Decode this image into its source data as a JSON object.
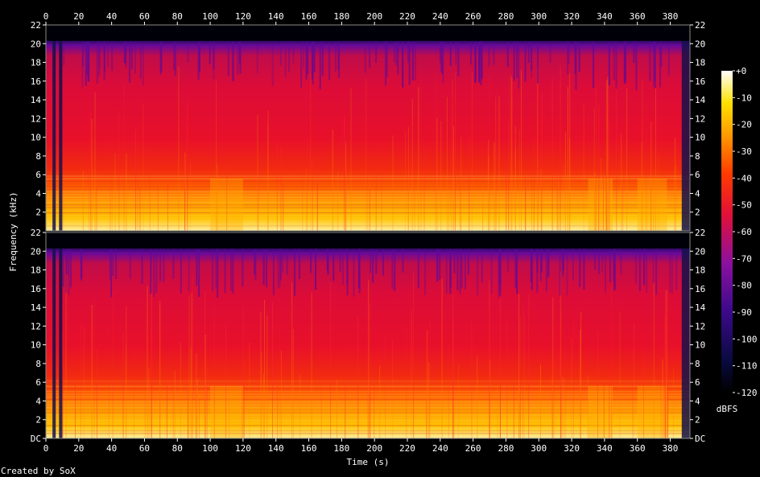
{
  "chart_data": {
    "type": "heatmap",
    "xlabel": "Time (s)",
    "ylabel": "Frequency (kHz)",
    "credit": "Created by SoX",
    "x_ticks": [
      "0",
      "20",
      "40",
      "60",
      "80",
      "100",
      "120",
      "140",
      "160",
      "180",
      "200",
      "220",
      "240",
      "260",
      "280",
      "300",
      "320",
      "340",
      "360",
      "380"
    ],
    "xlim": [
      0,
      392
    ],
    "channels": [
      {
        "y_ticks": [
          "2",
          "4",
          "6",
          "8",
          "10",
          "12",
          "14",
          "16",
          "18",
          "20",
          "22"
        ],
        "ylim": [
          0,
          22
        ]
      },
      {
        "y_ticks": [
          "DC",
          "2",
          "4",
          "6",
          "8",
          "10",
          "12",
          "14",
          "16",
          "18",
          "20",
          "22"
        ],
        "ylim": [
          0,
          22
        ]
      }
    ],
    "colorbar": {
      "label": "dBFS",
      "ticks": [
        "+0",
        "-10",
        "-20",
        "-30",
        "-40",
        "-50",
        "-60",
        "-70",
        "-80",
        "-90",
        "-100",
        "-110",
        "-120"
      ],
      "range": [
        -120,
        0
      ]
    },
    "spectral_profile": {
      "freq_khz": [
        0,
        1,
        2,
        3,
        4,
        5,
        6,
        7,
        8,
        10,
        12,
        14,
        16,
        18,
        20,
        22
      ],
      "level_dbfs": [
        -22,
        -28,
        -30,
        -34,
        -40,
        -44,
        -50,
        -54,
        -58,
        -60,
        -62,
        -64,
        -66,
        -70,
        -95,
        -120
      ]
    },
    "bright_segments_s": [
      [
        100,
        120
      ],
      [
        330,
        345
      ],
      [
        360,
        378
      ]
    ],
    "silent_segments_s": [
      [
        4,
        6
      ],
      [
        8,
        10
      ],
      [
        387,
        392
      ]
    ]
  }
}
